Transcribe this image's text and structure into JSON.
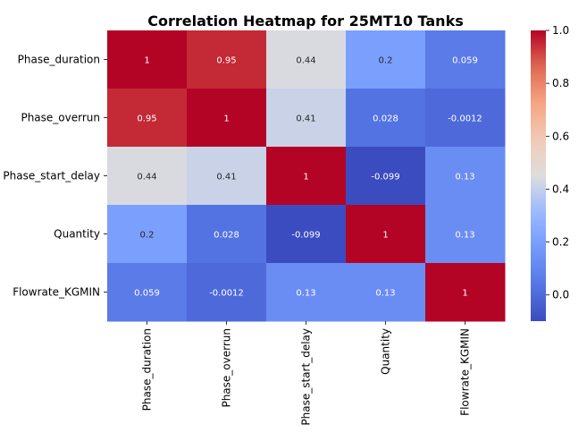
{
  "chart_data": {
    "type": "heatmap",
    "title": "Correlation Heatmap for 25MT10 Tanks",
    "row_labels": [
      "Phase_duration",
      "Phase_overrun",
      "Phase_start_delay",
      "Quantity",
      "Flowrate_KGMIN"
    ],
    "col_labels": [
      "Phase_duration",
      "Phase_overrun",
      "Phase_start_delay",
      "Quantity",
      "Flowrate_KGMIN"
    ],
    "values": [
      [
        1,
        0.95,
        0.44,
        0.2,
        0.059
      ],
      [
        0.95,
        1,
        0.41,
        0.028,
        -0.0012
      ],
      [
        0.44,
        0.41,
        1,
        -0.099,
        0.13
      ],
      [
        0.2,
        0.028,
        -0.099,
        1,
        0.13
      ],
      [
        0.059,
        -0.0012,
        0.13,
        0.13,
        1
      ]
    ],
    "cell_labels": [
      [
        "1",
        "0.95",
        "0.44",
        "0.2",
        "0.059"
      ],
      [
        "0.95",
        "1",
        "0.41",
        "0.028",
        "-0.0012"
      ],
      [
        "0.44",
        "0.41",
        "1",
        "-0.099",
        "0.13"
      ],
      [
        "0.2",
        "0.028",
        "-0.099",
        "1",
        "0.13"
      ],
      [
        "0.059",
        "-0.0012",
        "0.13",
        "0.13",
        "1"
      ]
    ],
    "colormap": "coolwarm",
    "colorbar": {
      "vmin": -0.099,
      "vmax": 1,
      "ticks": [
        0.0,
        0.2,
        0.4,
        0.6,
        0.8,
        1.0
      ],
      "tick_labels": [
        "0.0",
        "0.2",
        "0.4",
        "0.6",
        "0.8",
        "1.0"
      ]
    },
    "xlabel": "",
    "ylabel": ""
  }
}
